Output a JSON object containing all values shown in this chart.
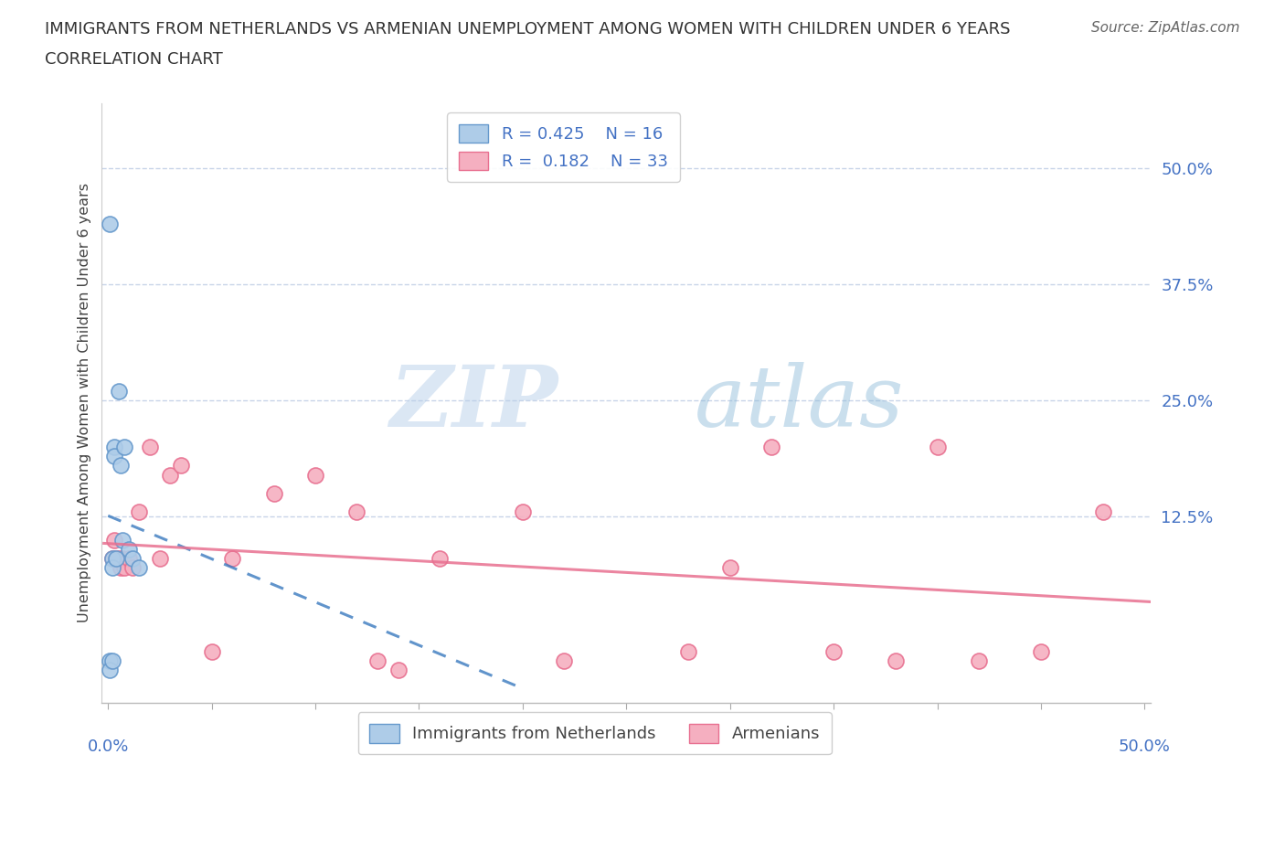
{
  "title_line1": "IMMIGRANTS FROM NETHERLANDS VS ARMENIAN UNEMPLOYMENT AMONG WOMEN WITH CHILDREN UNDER 6 YEARS",
  "title_line2": "CORRELATION CHART",
  "source_text": "Source: ZipAtlas.com",
  "watermark_zip": "ZIP",
  "watermark_atlas": "atlas",
  "ylabel": "Unemployment Among Women with Children Under 6 years",
  "ytick_labels_right": [
    "50.0%",
    "37.5%",
    "25.0%",
    "12.5%"
  ],
  "ytick_values_right": [
    0.5,
    0.375,
    0.25,
    0.125
  ],
  "xlim": [
    -0.003,
    0.503
  ],
  "ylim": [
    -0.075,
    0.57
  ],
  "legend1_label1": "R = 0.425",
  "legend1_n1": "N = 16",
  "legend1_label2": "R =  0.182",
  "legend1_n2": "N = 33",
  "series1_name": "Immigrants from Netherlands",
  "series2_name": "Armenians",
  "series1_color": "#aecce8",
  "series2_color": "#f5afc0",
  "series1_edge_color": "#6699cc",
  "series2_edge_color": "#e87090",
  "trend1_color": "#3a7abf",
  "trend2_color": "#e87090",
  "grid_color": "#c8d4e8",
  "bg_color": "#ffffff",
  "title_color": "#333333",
  "axis_color": "#4472c4",
  "series1_x": [
    0.001,
    0.001,
    0.001,
    0.002,
    0.002,
    0.002,
    0.003,
    0.003,
    0.004,
    0.005,
    0.006,
    0.007,
    0.008,
    0.01,
    0.012,
    0.015
  ],
  "series1_y": [
    0.44,
    -0.03,
    -0.04,
    0.08,
    0.07,
    -0.03,
    0.2,
    0.19,
    0.08,
    0.26,
    0.18,
    0.1,
    0.2,
    0.09,
    0.08,
    0.07
  ],
  "series2_x": [
    0.002,
    0.003,
    0.004,
    0.005,
    0.006,
    0.007,
    0.008,
    0.01,
    0.012,
    0.015,
    0.02,
    0.025,
    0.03,
    0.035,
    0.05,
    0.06,
    0.08,
    0.1,
    0.12,
    0.13,
    0.14,
    0.16,
    0.2,
    0.22,
    0.28,
    0.3,
    0.32,
    0.35,
    0.38,
    0.4,
    0.42,
    0.45,
    0.48
  ],
  "series2_y": [
    0.08,
    0.1,
    0.08,
    0.08,
    0.07,
    0.08,
    0.07,
    0.08,
    0.07,
    0.13,
    0.2,
    0.08,
    0.17,
    0.18,
    -0.02,
    0.08,
    0.15,
    0.17,
    0.13,
    -0.03,
    -0.04,
    0.08,
    0.13,
    -0.03,
    -0.02,
    0.07,
    0.2,
    -0.02,
    -0.03,
    0.2,
    -0.03,
    -0.02,
    0.13
  ],
  "xtick_positions": [
    0.0,
    0.05,
    0.1,
    0.15,
    0.2,
    0.25,
    0.3,
    0.35,
    0.4,
    0.45,
    0.5
  ]
}
